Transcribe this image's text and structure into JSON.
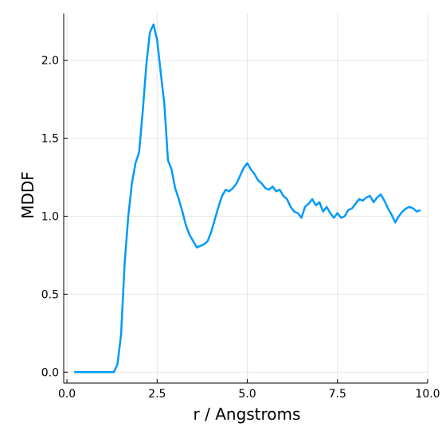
{
  "chart_data": {
    "type": "line",
    "xlabel": "r / Angstroms",
    "ylabel": "MDDF",
    "x": [
      0.2,
      0.5,
      1.0,
      1.3,
      1.4,
      1.5,
      1.6,
      1.7,
      1.8,
      1.9,
      2.0,
      2.1,
      2.2,
      2.3,
      2.4,
      2.5,
      2.6,
      2.7,
      2.8,
      2.9,
      3.0,
      3.1,
      3.2,
      3.3,
      3.4,
      3.5,
      3.6,
      3.7,
      3.8,
      3.9,
      4.0,
      4.1,
      4.2,
      4.3,
      4.4,
      4.5,
      4.6,
      4.7,
      4.8,
      4.9,
      5.0,
      5.1,
      5.2,
      5.3,
      5.4,
      5.5,
      5.6,
      5.7,
      5.8,
      5.9,
      6.0,
      6.1,
      6.2,
      6.3,
      6.4,
      6.5,
      6.6,
      6.7,
      6.8,
      6.9,
      7.0,
      7.1,
      7.2,
      7.3,
      7.4,
      7.5,
      7.6,
      7.7,
      7.8,
      7.9,
      8.0,
      8.1,
      8.2,
      8.3,
      8.4,
      8.5,
      8.6,
      8.7,
      8.8,
      8.9,
      9.0,
      9.1,
      9.2,
      9.3,
      9.4,
      9.5,
      9.6,
      9.7,
      9.8
    ],
    "series": [
      {
        "name": "MDDF",
        "color": "#009af9",
        "values": [
          0,
          0,
          0,
          0,
          0.05,
          0.24,
          0.7,
          1.0,
          1.21,
          1.34,
          1.41,
          1.67,
          1.97,
          2.18,
          2.23,
          2.13,
          1.92,
          1.72,
          1.36,
          1.3,
          1.18,
          1.11,
          1.03,
          0.94,
          0.88,
          0.84,
          0.8,
          0.81,
          0.82,
          0.84,
          0.9,
          0.98,
          1.06,
          1.13,
          1.17,
          1.16,
          1.18,
          1.21,
          1.26,
          1.31,
          1.34,
          1.3,
          1.27,
          1.23,
          1.21,
          1.18,
          1.17,
          1.19,
          1.16,
          1.17,
          1.13,
          1.11,
          1.06,
          1.03,
          1.02,
          0.99,
          1.06,
          1.08,
          1.11,
          1.07,
          1.09,
          1.03,
          1.06,
          1.02,
          0.99,
          1.02,
          0.99,
          1.0,
          1.04,
          1.05,
          1.08,
          1.11,
          1.1,
          1.12,
          1.13,
          1.09,
          1.12,
          1.14,
          1.1,
          1.05,
          1.01,
          0.96,
          1.0,
          1.03,
          1.05,
          1.06,
          1.05,
          1.03,
          1.04
        ]
      }
    ],
    "xlim": [
      -0.09,
      10.0
    ],
    "xticks": [
      {
        "value": 0,
        "label": "0.0"
      },
      2.5,
      {
        "value": 5,
        "label": "5.0"
      },
      7.5,
      {
        "value": 10,
        "label": "10.0"
      }
    ],
    "ylim": [
      -0.07,
      2.3
    ],
    "yticks": [
      {
        "value": 0,
        "label": "0.0"
      },
      0.5,
      {
        "value": 1,
        "label": "1.0"
      },
      1.5,
      {
        "value": 2,
        "label": "2.0"
      }
    ],
    "grid": true
  }
}
